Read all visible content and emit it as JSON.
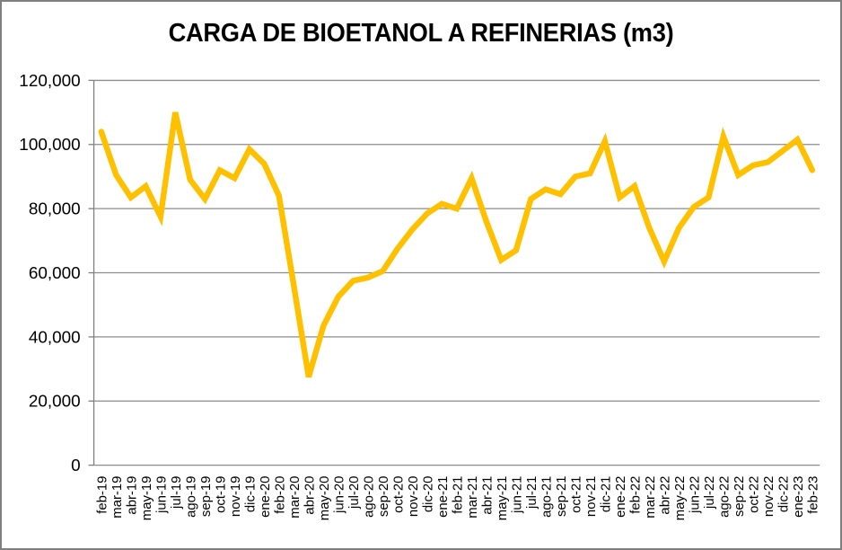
{
  "chart_data": {
    "type": "line",
    "title": "CARGA DE BIOETANOL A REFINERIAS (m3)",
    "categories": [
      "feb-19",
      "mar-19",
      "abr-19",
      "may-19",
      "jun-19",
      "jul-19",
      "ago-19",
      "sep-19",
      "oct-19",
      "nov-19",
      "dic-19",
      "ene-20",
      "feb-20",
      "mar-20",
      "abr-20",
      "may-20",
      "jun-20",
      "jul-20",
      "ago-20",
      "sep-20",
      "oct-20",
      "nov-20",
      "dic-20",
      "ene-21",
      "feb-21",
      "mar-21",
      "abr-21",
      "may-21",
      "jun-21",
      "jul-21",
      "ago-21",
      "sep-21",
      "oct-21",
      "nov-21",
      "dic-21",
      "ene-22",
      "feb-22",
      "mar-22",
      "abr-22",
      "may-22",
      "jun-22",
      "jul-22",
      "ago-22",
      "sep-22",
      "oct-22",
      "nov-22",
      "dic-22",
      "ene-23",
      "feb-23"
    ],
    "values": [
      104000,
      90500,
      83500,
      87000,
      77500,
      110000,
      89000,
      83000,
      92000,
      89500,
      98500,
      94000,
      84000,
      56000,
      27500,
      43500,
      52500,
      57500,
      58500,
      60500,
      67500,
      73500,
      78500,
      81500,
      80000,
      89500,
      76000,
      64000,
      67000,
      83000,
      86000,
      84500,
      90000,
      91000,
      101000,
      83500,
      87000,
      74000,
      63500,
      74000,
      80500,
      83500,
      102500,
      90500,
      93500,
      94500,
      98000,
      101500,
      92000
    ],
    "xlabel": "",
    "ylabel": "",
    "ylim": [
      0,
      120000
    ],
    "y_ticks": [
      {
        "value": 0,
        "label": "0"
      },
      {
        "value": 20000,
        "label": "20,000"
      },
      {
        "value": 40000,
        "label": "40,000"
      },
      {
        "value": 60000,
        "label": "60,000"
      },
      {
        "value": 80000,
        "label": "80,000"
      },
      {
        "value": 100000,
        "label": "100,000"
      },
      {
        "value": 120000,
        "label": "120,000"
      }
    ],
    "grid": "horizontal",
    "legend": "none",
    "series_color": "#FFC000",
    "gridline_color": "#8c8c8c",
    "axis_color": "#7f7f7f",
    "label_color": "#000000"
  }
}
